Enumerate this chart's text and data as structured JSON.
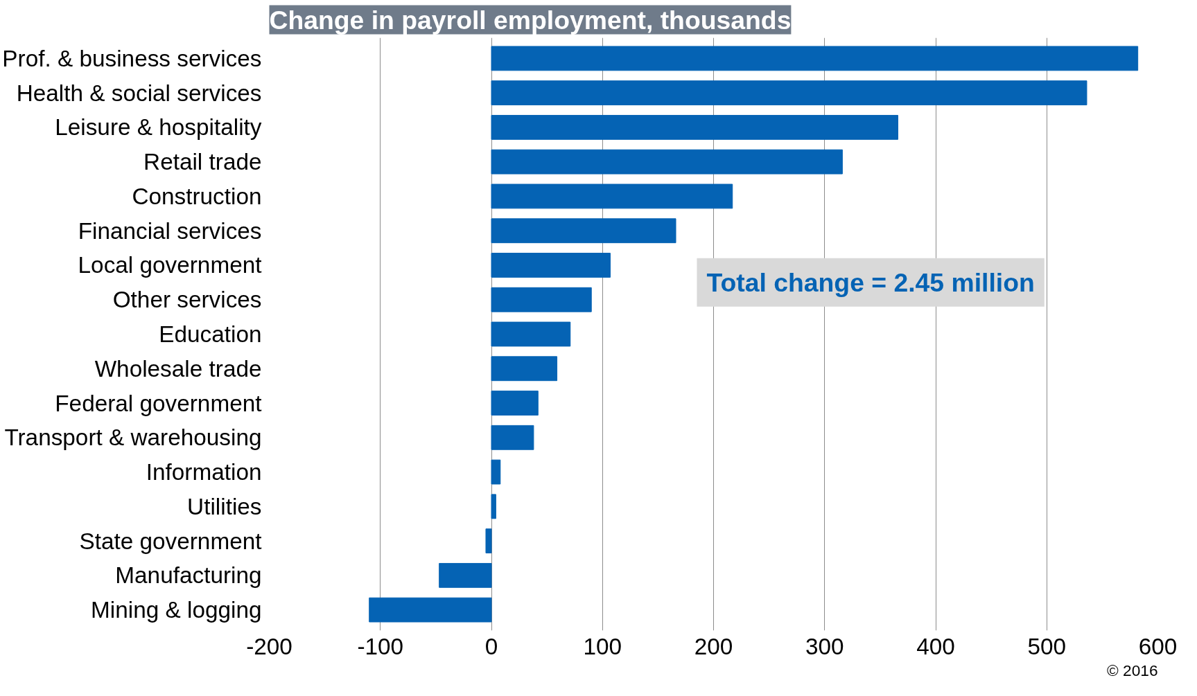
{
  "chart_data": {
    "type": "bar",
    "orientation": "horizontal",
    "title": "Change in payroll employment, thousands",
    "categories": [
      "Prof. & business services",
      "Health & social services",
      "Leisure & hospitality",
      "Retail trade",
      "Construction",
      "Financial services",
      "Local government",
      "Other services",
      "Education",
      "Wholesale trade",
      "Federal government",
      "Transport & warehousing",
      "Information",
      "Utilities",
      "State government",
      "Manufacturing",
      "Mining & logging"
    ],
    "values": [
      582,
      536,
      366,
      316,
      217,
      166,
      107,
      90,
      71,
      59,
      42,
      38,
      8,
      4,
      -5,
      -47,
      -110
    ],
    "color": "#0563b4",
    "xlim": [
      -200,
      600
    ],
    "xticks": [
      -200,
      -100,
      0,
      100,
      200,
      300,
      400,
      500,
      600
    ],
    "grid": "x",
    "annotations": [
      "Total change = 2.45 million",
      "© 2016"
    ]
  }
}
